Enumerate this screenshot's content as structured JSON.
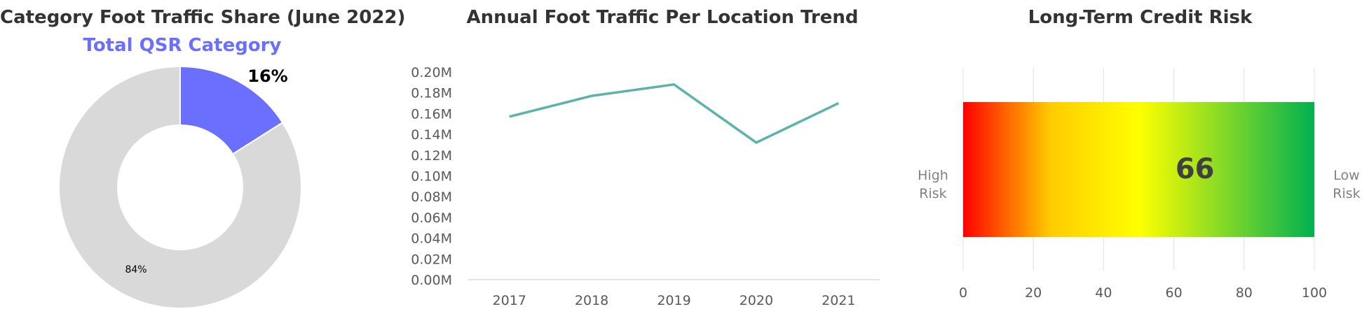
{
  "colors": {
    "highlight": "#6b6ffe",
    "rest": "#d9d9d9",
    "line": "#5bb3a9",
    "title": "#333333",
    "axis_text": "#595959",
    "gridline": "#e6e6e6",
    "gradient": [
      "#ff0000",
      "#ffcc00",
      "#ffff00",
      "#00b050"
    ]
  },
  "share_panel": {
    "title": "Category Foot Traffic Share (June 2022)",
    "subtitle": "Total QSR Category",
    "highlight_label": "16%",
    "rest_label": "84%"
  },
  "trend_panel": {
    "title": "Annual Foot Traffic Per Location Trend"
  },
  "risk_panel": {
    "title": "Long-Term Credit Risk",
    "left_label": [
      "High",
      "Risk"
    ],
    "right_label": [
      "Low",
      "Risk"
    ],
    "score_label": "66"
  },
  "chart_data": [
    {
      "type": "pie",
      "title": "Category Foot Traffic Share (June 2022)",
      "subtitle": "Total QSR Category",
      "donut": true,
      "values": [
        16,
        84
      ],
      "labels": [
        "16%",
        "84%"
      ]
    },
    {
      "type": "line",
      "title": "Annual Foot Traffic Per Location Trend",
      "x": [
        "2017",
        "2018",
        "2019",
        "2020",
        "2021"
      ],
      "series": [
        {
          "values": [
            0.157,
            0.177,
            0.188,
            0.132,
            0.17
          ]
        }
      ],
      "ylim": [
        0,
        0.2
      ],
      "yticks": [
        "0.00M",
        "0.02M",
        "0.04M",
        "0.06M",
        "0.08M",
        "0.10M",
        "0.12M",
        "0.14M",
        "0.16M",
        "0.18M",
        "0.20M"
      ],
      "grid": false
    },
    {
      "type": "bar",
      "title": "Long-Term Credit Risk",
      "orientation": "horizontal",
      "xlim": [
        0,
        100
      ],
      "xticks": [
        "0",
        "20",
        "40",
        "60",
        "80",
        "100"
      ],
      "value": 66,
      "grid": true
    }
  ]
}
